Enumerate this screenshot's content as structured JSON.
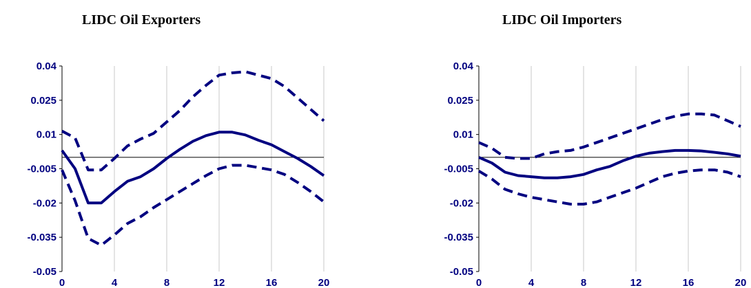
{
  "colors": {
    "line": "#000080",
    "grid": "#c8c8c8",
    "axis": "#000000"
  },
  "chart_data": [
    {
      "type": "line",
      "title": "LIDC Oil Exporters",
      "xlim": [
        0,
        20
      ],
      "ylim": [
        -0.05,
        0.04
      ],
      "x_ticks": [
        0,
        4,
        8,
        12,
        16,
        20
      ],
      "x_tick_labels": [
        "0",
        "4",
        "8",
        "12",
        "16",
        "20"
      ],
      "y_ticks": [
        0.04,
        0.025,
        0.01,
        -0.005,
        -0.02,
        -0.035,
        -0.05
      ],
      "y_tick_labels": [
        "0.04",
        "0.025",
        "0.01",
        "-0.005",
        "-0.02",
        "-0.035",
        "-0.05"
      ],
      "zero_line": 0,
      "grid": true,
      "x": [
        0,
        1,
        2,
        3,
        4,
        5,
        6,
        7,
        8,
        9,
        10,
        11,
        12,
        13,
        14,
        15,
        16,
        17,
        18,
        19,
        20
      ],
      "series": [
        {
          "role": "point estimate",
          "style": "solid",
          "values": [
            0.003,
            -0.005,
            -0.02,
            -0.02,
            -0.015,
            -0.0105,
            -0.0085,
            -0.005,
            -0.0005,
            0.0035,
            0.007,
            0.0095,
            0.011,
            0.011,
            0.0098,
            0.0075,
            0.0055,
            0.0025,
            -0.0005,
            -0.004,
            -0.008
          ]
        },
        {
          "role": "upper band",
          "style": "dashed",
          "values": [
            0.0115,
            0.0085,
            -0.0055,
            -0.0055,
            -0.0005,
            0.005,
            0.008,
            0.0105,
            0.0155,
            0.0205,
            0.0265,
            0.0315,
            0.036,
            0.037,
            0.0375,
            0.036,
            0.0345,
            0.031,
            0.026,
            0.021,
            0.016
          ]
        },
        {
          "role": "lower band",
          "style": "dashed",
          "values": [
            -0.0055,
            -0.019,
            -0.0355,
            -0.0385,
            -0.034,
            -0.029,
            -0.026,
            -0.022,
            -0.0185,
            -0.015,
            -0.0115,
            -0.008,
            -0.005,
            -0.0035,
            -0.0035,
            -0.0045,
            -0.0055,
            -0.0075,
            -0.011,
            -0.015,
            -0.0195
          ]
        }
      ]
    },
    {
      "type": "line",
      "title": "LIDC Oil Importers",
      "xlim": [
        0,
        20
      ],
      "ylim": [
        -0.05,
        0.04
      ],
      "x_ticks": [
        0,
        4,
        8,
        12,
        16,
        20
      ],
      "x_tick_labels": [
        "0",
        "4",
        "8",
        "12",
        "16",
        "20"
      ],
      "y_ticks": [
        0.04,
        0.025,
        0.01,
        -0.005,
        -0.02,
        -0.035,
        -0.05
      ],
      "y_tick_labels": [
        "0.04",
        "0.025",
        "0.01",
        "-0.005",
        "-0.02",
        "-0.035",
        "-0.05"
      ],
      "zero_line": 0,
      "grid": true,
      "x": [
        0,
        1,
        2,
        3,
        4,
        5,
        6,
        7,
        8,
        9,
        10,
        11,
        12,
        13,
        14,
        15,
        16,
        17,
        18,
        19,
        20
      ],
      "series": [
        {
          "role": "point estimate",
          "style": "solid",
          "values": [
            0,
            -0.0025,
            -0.0065,
            -0.008,
            -0.0085,
            -0.009,
            -0.009,
            -0.0085,
            -0.0075,
            -0.0055,
            -0.004,
            -0.0015,
            0.0005,
            0.0018,
            0.0025,
            0.003,
            0.003,
            0.0028,
            0.0022,
            0.0015,
            0.0005
          ]
        },
        {
          "role": "upper band",
          "style": "dashed",
          "values": [
            0.0065,
            0.004,
            0,
            -0.0005,
            -0.0005,
            0.0015,
            0.0025,
            0.003,
            0.0045,
            0.0065,
            0.0085,
            0.0105,
            0.0125,
            0.0145,
            0.0165,
            0.018,
            0.019,
            0.019,
            0.0185,
            0.016,
            0.0135
          ]
        },
        {
          "role": "lower band",
          "style": "dashed",
          "values": [
            -0.006,
            -0.0095,
            -0.014,
            -0.016,
            -0.0175,
            -0.0185,
            -0.0195,
            -0.0205,
            -0.0205,
            -0.0195,
            -0.0175,
            -0.0155,
            -0.0135,
            -0.011,
            -0.0085,
            -0.007,
            -0.006,
            -0.0055,
            -0.0055,
            -0.0065,
            -0.0085
          ]
        }
      ]
    }
  ]
}
